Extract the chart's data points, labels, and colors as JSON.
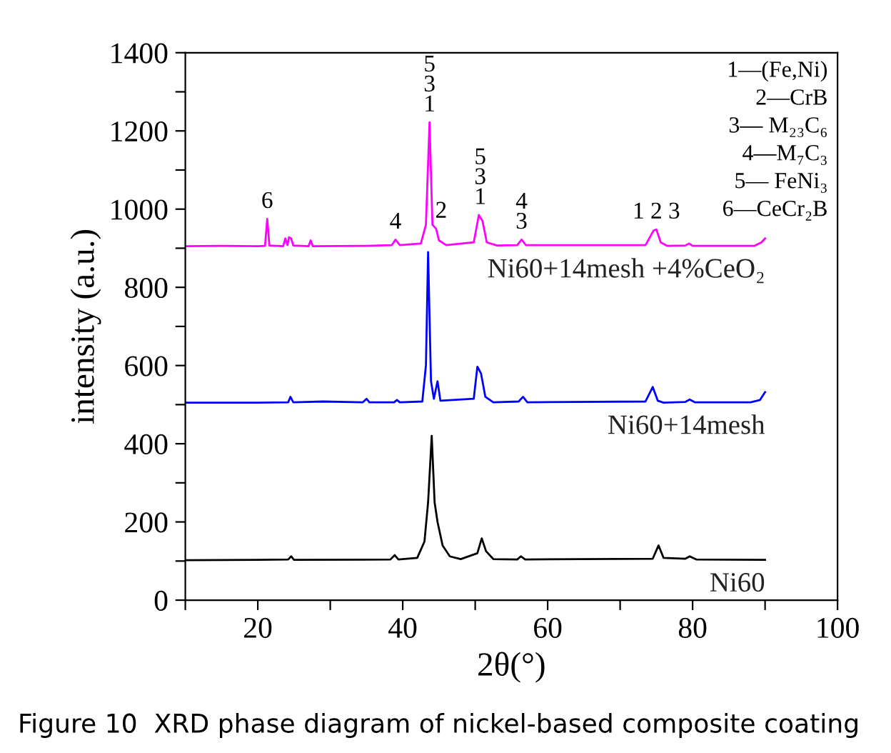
{
  "chart_data": {
    "type": "line",
    "xlabel": "2θ(°)",
    "ylabel": "intensity (a.u.)",
    "xlim": [
      10,
      100
    ],
    "ylim": [
      0,
      1400
    ],
    "xticks": [
      {
        "value": 10,
        "label": null
      },
      20,
      {
        "value": 30,
        "label": null
      },
      40,
      {
        "value": 50,
        "label": null
      },
      60,
      {
        "value": 70,
        "label": null
      },
      80,
      {
        "value": 90,
        "label": null
      },
      100
    ],
    "yticks": [
      0,
      {
        "value": 100,
        "label": null
      },
      200,
      {
        "value": 300,
        "label": null
      },
      400,
      {
        "value": 500,
        "label": null
      },
      600,
      {
        "value": 700,
        "label": null
      },
      800,
      {
        "value": 900,
        "label": null
      },
      1000,
      {
        "value": 1100,
        "label": null
      },
      1200,
      {
        "value": 1300,
        "label": null
      },
      1400
    ],
    "grid": false,
    "legend": false,
    "marker": "none",
    "line_style": "solid",
    "series": [
      {
        "name": "Ni60+14mesh +4%CeO₂",
        "color": "#ff00ff",
        "x": [
          10,
          15,
          20,
          21,
          21.3,
          21.6,
          23.5,
          23.8,
          24.1,
          24.3,
          24.6,
          24.9,
          27,
          27.3,
          27.6,
          35,
          38.5,
          39,
          39.6,
          42.5,
          43.2,
          43.7,
          44.1,
          44.6,
          45,
          46,
          49.8,
          50.5,
          51,
          51.6,
          53,
          55.8,
          56.4,
          57,
          73.5,
          74.6,
          75,
          75.6,
          76.5,
          79,
          79.5,
          80,
          88.5,
          89.5,
          90
        ],
        "values": [
          905,
          906,
          905,
          906,
          975,
          907,
          905,
          925,
          908,
          928,
          925,
          907,
          905,
          920,
          905,
          906,
          908,
          922,
          908,
          912,
          960,
          1222,
          960,
          950,
          920,
          908,
          915,
          985,
          970,
          915,
          907,
          908,
          922,
          908,
          908,
          945,
          948,
          915,
          906,
          907,
          912,
          906,
          906,
          915,
          925
        ]
      },
      {
        "name": "Ni60+14mesh",
        "color": "#0000ff",
        "x": [
          10,
          20,
          24.2,
          24.5,
          24.9,
          29,
          34.5,
          35,
          35.4,
          38.8,
          39.2,
          39.6,
          42.7,
          43.2,
          43.5,
          43.9,
          44.3,
          44.8,
          45.2,
          49.8,
          50.3,
          50.8,
          51.4,
          52.5,
          56,
          56.6,
          57.2,
          73.5,
          74.5,
          75.2,
          76,
          79,
          79.6,
          80.3,
          88,
          89.3,
          90
        ],
        "values": [
          505,
          505,
          506,
          520,
          506,
          508,
          506,
          515,
          506,
          506,
          512,
          506,
          508,
          600,
          890,
          560,
          515,
          560,
          510,
          515,
          597,
          580,
          520,
          506,
          508,
          520,
          506,
          508,
          545,
          510,
          505,
          507,
          513,
          506,
          506,
          512,
          532
        ]
      },
      {
        "name": "Ni60",
        "color": "#000000",
        "x": [
          10,
          20,
          24.2,
          24.6,
          25,
          38.3,
          38.9,
          39.4,
          42,
          43,
          43.5,
          44,
          44.4,
          44.8,
          45.5,
          46.5,
          48,
          50.3,
          50.9,
          51.5,
          52.5,
          55.8,
          56.3,
          56.9,
          74.5,
          75.3,
          76,
          79,
          79.6,
          80.5,
          90
        ],
        "values": [
          102,
          103,
          104,
          112,
          103,
          104,
          115,
          104,
          108,
          150,
          250,
          420,
          250,
          200,
          140,
          112,
          105,
          120,
          158,
          125,
          105,
          104,
          112,
          104,
          106,
          140,
          108,
          106,
          112,
          104,
          103
        ]
      }
    ],
    "annotations": [
      {
        "text": "6",
        "x": 21.3,
        "y": 975
      },
      {
        "text": "4",
        "x": 39,
        "y": 922
      },
      {
        "text": "5\n3\n1",
        "x": 43.7,
        "y": 1222
      },
      {
        "text": "2",
        "x": 45.3,
        "y": 950
      },
      {
        "text": "5\n3\n1",
        "x": 50.7,
        "y": 985
      },
      {
        "text": "4\n3",
        "x": 56.4,
        "y": 922
      },
      {
        "text": "1 2 3",
        "x": 75,
        "y": 948
      },
      "1—(Fe,Ni)\n2—CrB\n3— M₂₃C₆\n4—M₇C₃\n5— FeNi₃\n6—CeCr₂B",
      "Figure 10  XRD phase diagram of nickel-based composite coating"
    ]
  }
}
